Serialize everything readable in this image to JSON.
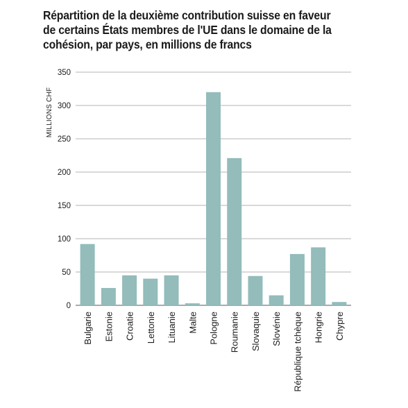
{
  "title_lines": [
    "Répartition de la deuxième contribution suisse en faveur",
    "de certains États membres de l'UE dans le domaine de la",
    "cohésion, par pays, en millions de francs"
  ],
  "chart_data": {
    "type": "bar",
    "title": "Répartition de la deuxième contribution suisse en faveur de certains États membres de l'UE dans le domaine de la cohésion, par pays, en millions de francs",
    "xlabel": "",
    "ylabel": "MILLIONS CHF",
    "ylim": [
      0,
      350
    ],
    "yticks": [
      0,
      50,
      100,
      150,
      200,
      250,
      300,
      350
    ],
    "grid": true,
    "bar_color": "#93bcbb",
    "categories": [
      "Bulgarie",
      "Estonie",
      "Croatie",
      "Lettonie",
      "Lituanie",
      "Malte",
      "Pologne",
      "Roumanie",
      "Slovaquie",
      "Slovénie",
      "République tchèque",
      "Hongrie",
      "Chypre"
    ],
    "values": [
      92,
      26,
      45,
      40,
      45,
      3,
      320,
      221,
      44,
      15,
      77,
      87,
      5
    ]
  }
}
